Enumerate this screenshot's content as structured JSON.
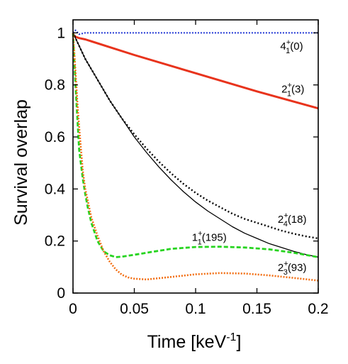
{
  "chart_data": {
    "type": "line",
    "title": "",
    "xlabel_main": "Time [keV",
    "xlabel_exp": "-1",
    "xlabel_close": "]",
    "ylabel": "Survival overlap",
    "xlim": [
      0,
      0.2
    ],
    "ylim": [
      0,
      1.05
    ],
    "grid": false,
    "legend": "none",
    "xticks": [
      {
        "v": 0,
        "label": "0"
      },
      {
        "v": 0.05,
        "label": "0.05"
      },
      {
        "v": 0.1,
        "label": "0.1"
      },
      {
        "v": 0.15,
        "label": "0.15"
      },
      {
        "v": 0.2,
        "label": "0.2"
      }
    ],
    "yticks": [
      {
        "v": 0,
        "label": "0"
      },
      {
        "v": 0.2,
        "label": "0.2"
      },
      {
        "v": 0.4,
        "label": "0.4"
      },
      {
        "v": 0.6,
        "label": "0.6"
      },
      {
        "v": 0.8,
        "label": "0.8"
      },
      {
        "v": 1,
        "label": "1"
      }
    ],
    "series": [
      {
        "color": "#2a3fd6",
        "dash": "2,2",
        "width": 2.2,
        "x": [
          0,
          0.002,
          0.005,
          0.01,
          0.05,
          0.1,
          0.15,
          0.2
        ],
        "y": [
          1.0,
          1.01,
          0.995,
          1.0,
          1.0,
          1.0,
          1.0,
          1.0
        ]
      },
      {
        "color": "#e8331c",
        "dash": "",
        "width": 3,
        "x": [
          0,
          0.002,
          0.005,
          0.01,
          0.05,
          0.1,
          0.15,
          0.2
        ],
        "y": [
          0.995,
          0.985,
          0.98,
          0.975,
          0.915,
          0.845,
          0.775,
          0.71
        ]
      },
      {
        "color": "#000000",
        "dash": "2,3",
        "width": 2.4,
        "x": [
          0,
          0.005,
          0.01,
          0.02,
          0.03,
          0.04,
          0.05,
          0.06,
          0.07,
          0.08,
          0.09,
          0.1,
          0.11,
          0.12,
          0.13,
          0.14,
          0.15,
          0.16,
          0.17,
          0.18,
          0.19,
          0.2
        ],
        "y": [
          1.0,
          0.95,
          0.9,
          0.82,
          0.74,
          0.67,
          0.61,
          0.555,
          0.505,
          0.46,
          0.42,
          0.385,
          0.355,
          0.33,
          0.305,
          0.285,
          0.27,
          0.255,
          0.24,
          0.228,
          0.218,
          0.21
        ]
      },
      {
        "color": "#000000",
        "dash": "",
        "width": 1.3,
        "x": [
          0,
          0.005,
          0.01,
          0.02,
          0.03,
          0.04,
          0.05,
          0.06,
          0.07,
          0.08,
          0.09,
          0.1,
          0.11,
          0.12,
          0.13,
          0.14,
          0.15,
          0.16,
          0.17,
          0.18,
          0.19,
          0.2
        ],
        "y": [
          1.0,
          0.95,
          0.9,
          0.82,
          0.74,
          0.67,
          0.6,
          0.54,
          0.485,
          0.435,
          0.39,
          0.35,
          0.315,
          0.285,
          0.255,
          0.23,
          0.21,
          0.19,
          0.175,
          0.16,
          0.148,
          0.138
        ]
      },
      {
        "color": "#27d420",
        "dash": "6,3",
        "width": 2.8,
        "x": [
          0,
          0.002,
          0.005,
          0.008,
          0.01,
          0.012,
          0.015,
          0.02,
          0.025,
          0.03,
          0.035,
          0.04,
          0.05,
          0.06,
          0.08,
          0.1,
          0.12,
          0.14,
          0.16,
          0.18,
          0.2
        ],
        "y": [
          1.0,
          0.8,
          0.55,
          0.44,
          0.38,
          0.33,
          0.27,
          0.2,
          0.16,
          0.145,
          0.138,
          0.14,
          0.147,
          0.155,
          0.17,
          0.177,
          0.178,
          0.175,
          0.168,
          0.155,
          0.138
        ]
      },
      {
        "color": "#f26e12",
        "dash": "2,2",
        "width": 2.6,
        "x": [
          0,
          0.002,
          0.004,
          0.006,
          0.008,
          0.01,
          0.015,
          0.02,
          0.025,
          0.03,
          0.035,
          0.04,
          0.045,
          0.05,
          0.06,
          0.08,
          0.1,
          0.12,
          0.14,
          0.16,
          0.18,
          0.2
        ],
        "y": [
          1.0,
          0.85,
          0.7,
          0.58,
          0.47,
          0.4,
          0.29,
          0.22,
          0.16,
          0.12,
          0.09,
          0.07,
          0.06,
          0.055,
          0.052,
          0.062,
          0.072,
          0.077,
          0.075,
          0.068,
          0.058,
          0.048
        ]
      }
    ],
    "annotations": [
      {
        "main": "4",
        "sup": "+",
        "sub": "1",
        "rest": "(0)",
        "x": 0.169,
        "y": 0.935
      },
      {
        "main": "2",
        "sup": "+",
        "sub": "1",
        "rest": "(3)",
        "x": 0.17,
        "y": 0.77
      },
      {
        "main": "2",
        "sup": "+",
        "sub": "4",
        "rest": "(18)",
        "x": 0.167,
        "y": 0.27
      },
      {
        "main": "1",
        "sup": "+",
        "sub": "1",
        "rest": "(195)",
        "x": 0.097,
        "y": 0.2
      },
      {
        "main": "2",
        "sup": "+",
        "sub": "3",
        "rest": "(93)",
        "x": 0.167,
        "y": 0.085
      }
    ]
  }
}
